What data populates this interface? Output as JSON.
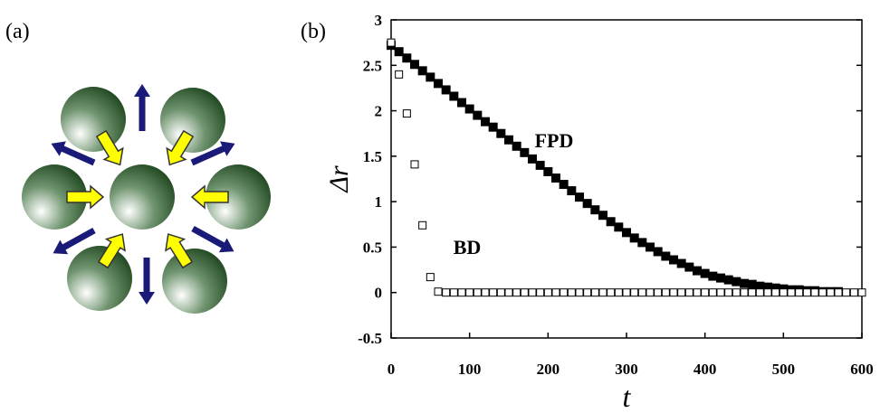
{
  "panel_a": {
    "label": "(a)"
  },
  "chart_data": {
    "type": "scatter",
    "panel_label": "(b)",
    "x_label": "t",
    "y_label": "Δr",
    "annotations": [
      "FPD",
      "BD"
    ],
    "xlim": [
      0,
      600
    ],
    "ylim": [
      -0.5,
      3
    ],
    "xticks": [
      0,
      100,
      200,
      300,
      400,
      500,
      600
    ],
    "yticks": [
      -0.5,
      0,
      0.5,
      1,
      1.5,
      2,
      2.5,
      3
    ],
    "series": [
      {
        "name": "FPD",
        "color": "#000000",
        "filled": true,
        "x": [
          0,
          10,
          20,
          30,
          40,
          50,
          60,
          70,
          80,
          90,
          100,
          110,
          120,
          130,
          140,
          150,
          160,
          170,
          180,
          190,
          200,
          210,
          220,
          230,
          240,
          250,
          260,
          270,
          280,
          290,
          300,
          310,
          320,
          330,
          340,
          350,
          360,
          370,
          380,
          390,
          400,
          410,
          420,
          430,
          440,
          450,
          460,
          470,
          480,
          490,
          500,
          510,
          520,
          530,
          540,
          550,
          560,
          570
        ],
        "values": [
          2.72,
          2.65,
          2.58,
          2.51,
          2.44,
          2.37,
          2.3,
          2.23,
          2.16,
          2.09,
          2.02,
          1.95,
          1.88,
          1.82,
          1.75,
          1.68,
          1.61,
          1.54,
          1.47,
          1.4,
          1.33,
          1.26,
          1.19,
          1.12,
          1.05,
          0.98,
          0.91,
          0.85,
          0.78,
          0.72,
          0.66,
          0.6,
          0.55,
          0.5,
          0.45,
          0.4,
          0.36,
          0.32,
          0.28,
          0.24,
          0.21,
          0.18,
          0.16,
          0.14,
          0.12,
          0.1,
          0.09,
          0.07,
          0.06,
          0.05,
          0.04,
          0.03,
          0.03,
          0.02,
          0.02,
          0.01,
          0.01,
          0.01
        ]
      },
      {
        "name": "BD",
        "color": "#000000",
        "filled": false,
        "x": [
          0,
          10,
          20,
          30,
          40,
          50,
          60,
          70,
          80,
          90,
          100,
          110,
          120,
          130,
          140,
          150,
          160,
          170,
          180,
          190,
          200,
          210,
          220,
          230,
          240,
          250,
          260,
          270,
          280,
          290,
          300,
          310,
          320,
          330,
          340,
          350,
          360,
          370,
          380,
          390,
          400,
          410,
          420,
          430,
          440,
          450,
          460,
          470,
          480,
          490,
          500,
          510,
          520,
          530,
          540,
          550,
          560,
          570,
          580,
          590,
          600
        ],
        "values": [
          2.75,
          2.4,
          1.97,
          1.41,
          0.74,
          0.17,
          0.01,
          0,
          0,
          0,
          0,
          0,
          0,
          0,
          0,
          0,
          0,
          0,
          0,
          0,
          0,
          0,
          0,
          0,
          0,
          0,
          0,
          0,
          0,
          0,
          0,
          0,
          0,
          0,
          0,
          0,
          0,
          0,
          0,
          0,
          0,
          0,
          0,
          0,
          0,
          0,
          0,
          0,
          0,
          0,
          0,
          0,
          0,
          0,
          0,
          0,
          0,
          0,
          0,
          0,
          0
        ]
      }
    ]
  }
}
